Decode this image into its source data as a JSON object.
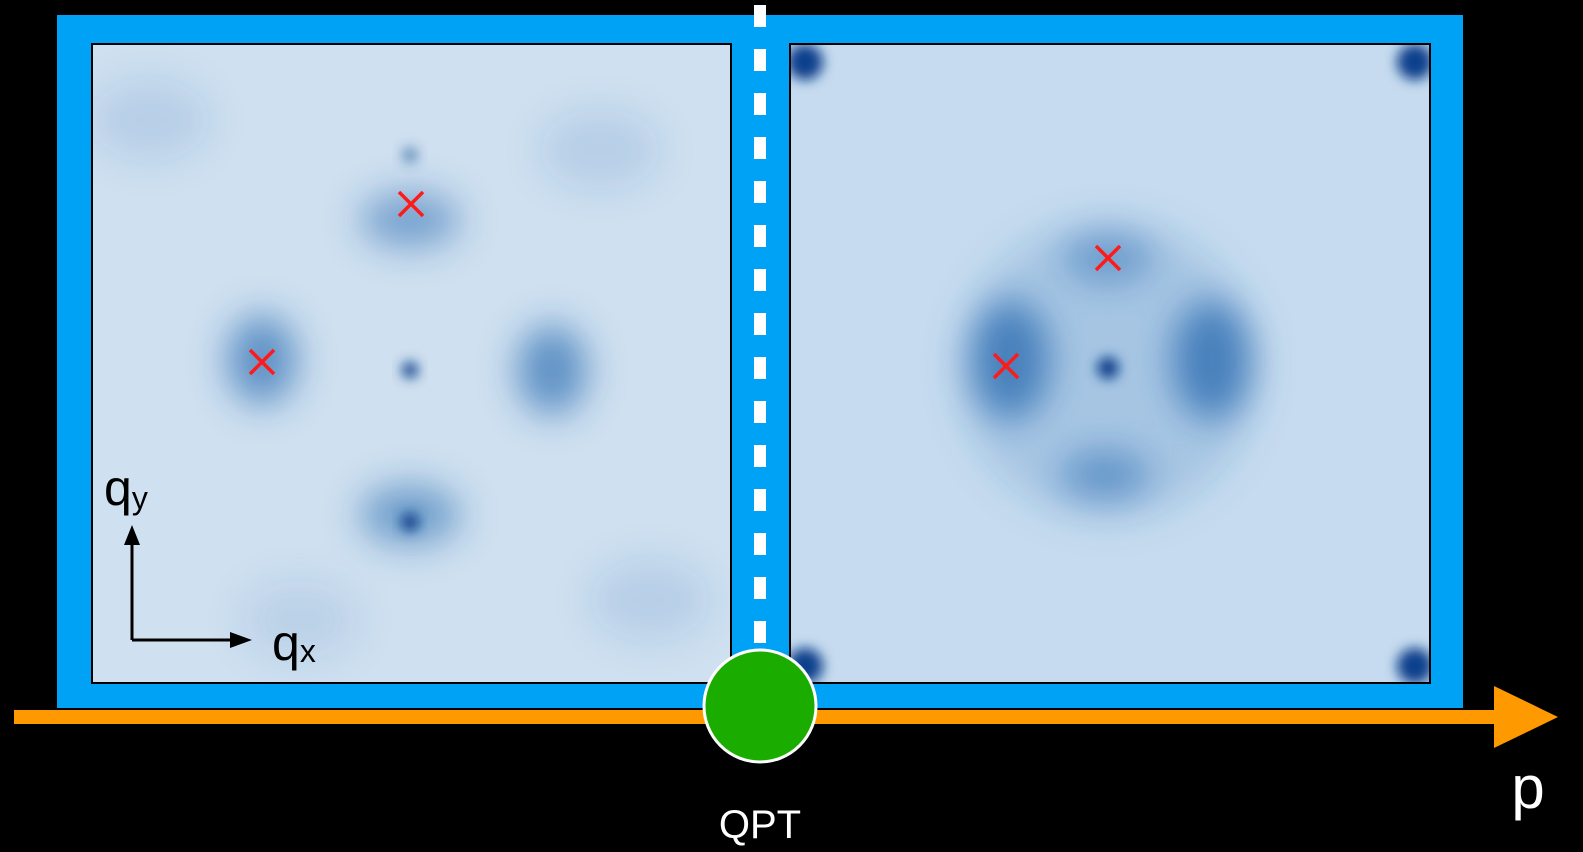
{
  "labels": {
    "qy": {
      "base": "q",
      "sub": "y"
    },
    "qx": {
      "base": "q",
      "sub": "x"
    },
    "axis": "p",
    "transition": "QPT"
  }
}
